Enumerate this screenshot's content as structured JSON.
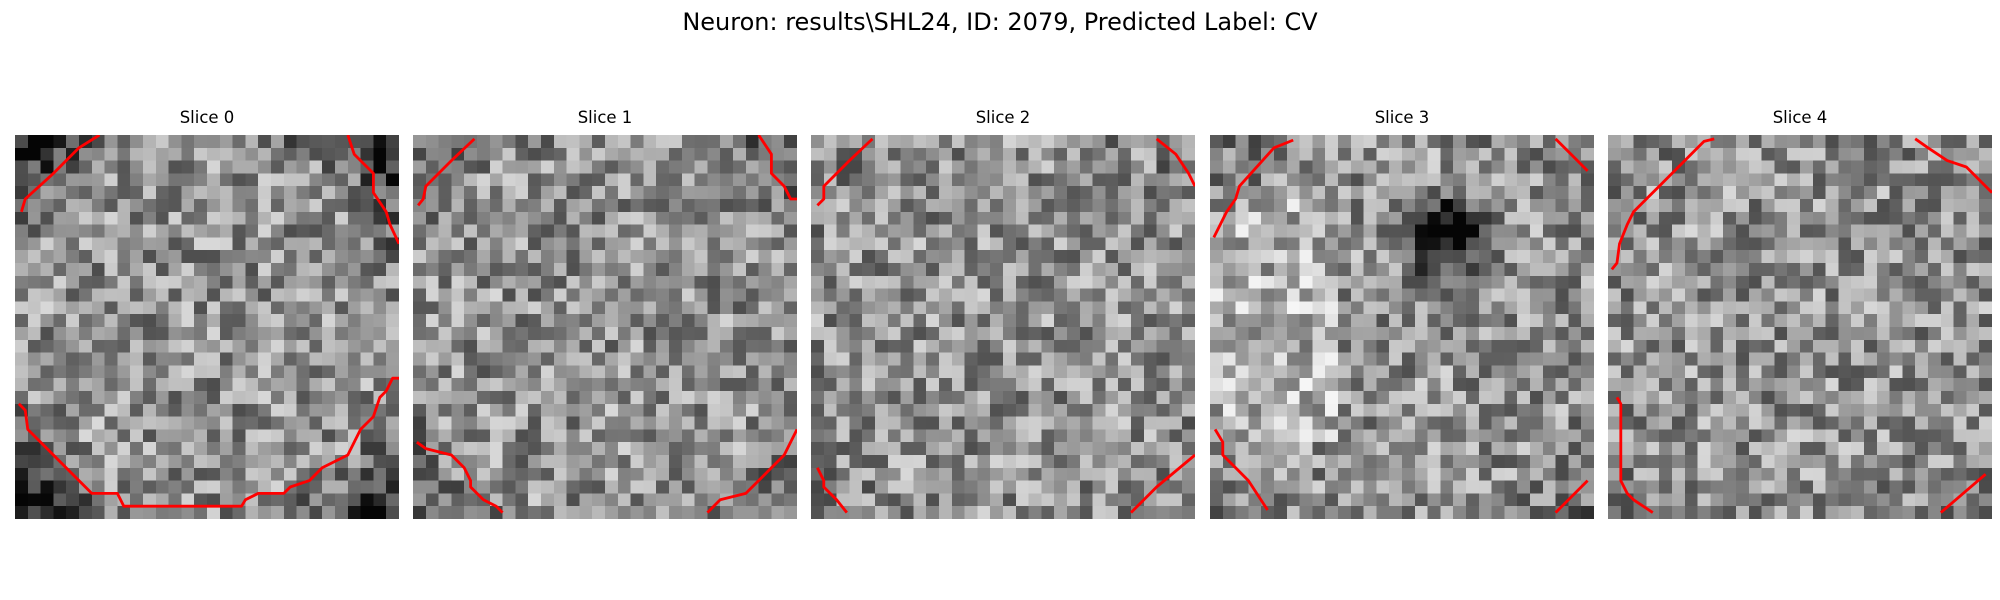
{
  "figure": {
    "title": "Neuron: results\\SHL24, ID: 2079, Predicted Label: CV"
  },
  "slices": [
    {
      "label": "Slice 0",
      "seed": 11,
      "dark_border": 0.55,
      "dark_blob": null
    },
    {
      "label": "Slice 1",
      "seed": 23,
      "dark_border": 0.25,
      "dark_blob": null
    },
    {
      "label": "Slice 2",
      "seed": 37,
      "dark_border": 0.1,
      "dark_blob": null
    },
    {
      "label": "Slice 3",
      "seed": 51,
      "dark_border": 0.15,
      "dark_blob": "upper-right center"
    },
    {
      "label": "Slice 4",
      "seed": 67,
      "dark_border": 0.05,
      "dark_blob": null
    }
  ],
  "colors": {
    "contour": "#ff0000",
    "background": "#ffffff"
  },
  "image_colormap": "grayscale",
  "grid_cells": 30
}
